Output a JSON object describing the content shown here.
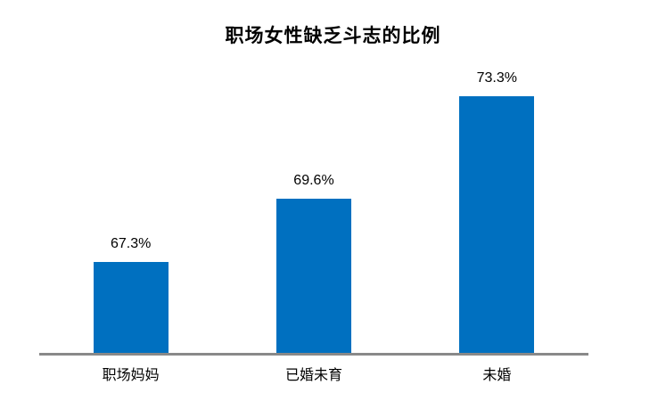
{
  "chart_data": {
    "type": "bar",
    "title": "职场女性缺乏斗志的比例",
    "categories": [
      "职场妈妈",
      "已婚未育",
      "未婚"
    ],
    "values": [
      67.3,
      69.6,
      73.3
    ],
    "value_labels": [
      "67.3%",
      "69.6%",
      "73.3%"
    ],
    "ylabel": "",
    "xlabel": "",
    "ylim": [
      64,
      76
    ],
    "grid": false,
    "legend": "none",
    "bar_color": "#0070C0",
    "axis_line_color": "#898989",
    "text_color": "#000000",
    "background_color": "#FFFFFF"
  }
}
